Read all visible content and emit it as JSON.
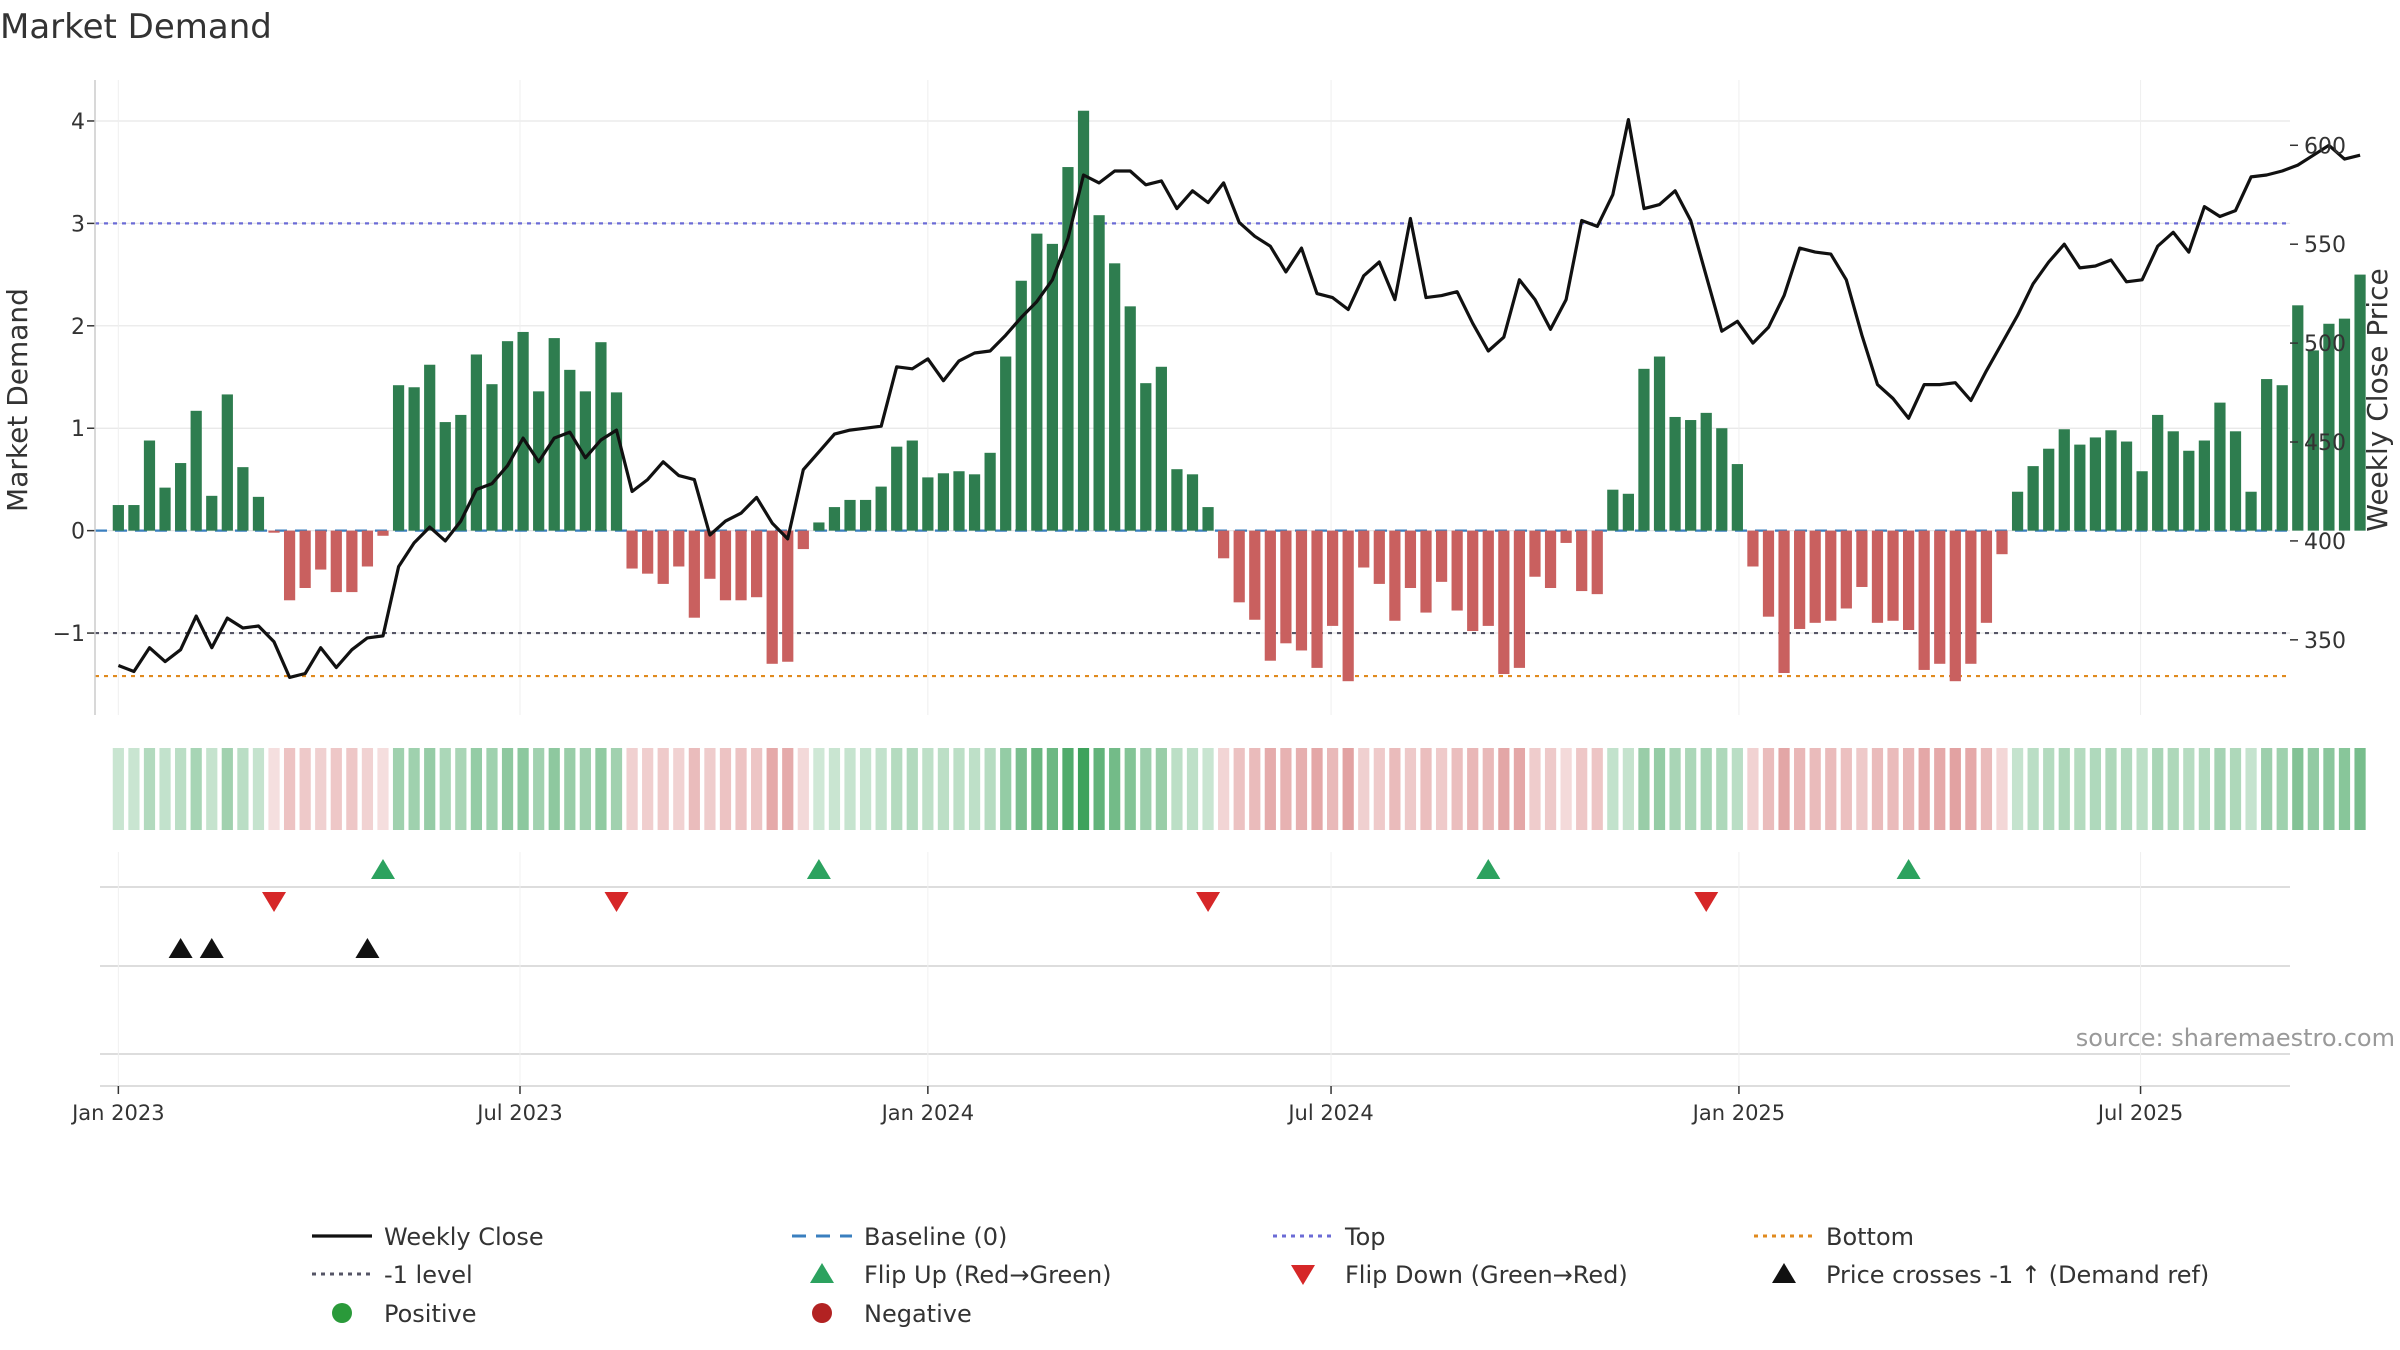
{
  "colors": {
    "positive_bar": "#2e7d4f",
    "negative_bar": "#c9605f",
    "price_line": "#111111",
    "baseline": "#3a7fbf",
    "top": "#6b6bd6",
    "bottom": "#e08a1e",
    "minus1": "#555566",
    "flip_up": "#2ca25f",
    "flip_down": "#d62728",
    "cross": "#111111",
    "positive_dot": "#2a9a3a",
    "negative_dot": "#b22222",
    "grid": "#e6e6e6"
  },
  "chart_data": {
    "type": "bar+line",
    "title": "Market Demand",
    "ylabel": "Market Demand",
    "y2label": "Weekly Close Price",
    "ylim": [
      -1.8,
      4.4
    ],
    "y2lim": [
      312,
      633
    ],
    "yticks": [
      -1,
      0,
      1,
      2,
      3,
      4
    ],
    "ytick_labels": [
      "−1",
      "0",
      "1",
      "2",
      "3",
      "4"
    ],
    "y2ticks": [
      350,
      400,
      450,
      500,
      550,
      600
    ],
    "y2tick_labels": [
      "350",
      "400",
      "450",
      "500",
      "550",
      "600"
    ],
    "x_start": "2023-01-02",
    "x_axis_range_weeks": [
      -1.5,
      139.5
    ],
    "x_ticks": [
      {
        "label": "Jan 2023",
        "week": 0
      },
      {
        "label": "Jul 2023",
        "week": 25.8
      },
      {
        "label": "Jan 2024",
        "week": 52
      },
      {
        "label": "Jul 2024",
        "week": 77.9
      },
      {
        "label": "Jan 2025",
        "week": 104.1
      },
      {
        "label": "Jul 2025",
        "week": 129.9
      }
    ],
    "reference_lines": {
      "top": 3.0,
      "bottom": -1.42,
      "minus_one": -1.0,
      "baseline": 0
    },
    "demand": [
      0.25,
      0.25,
      0.88,
      0.42,
      0.66,
      1.17,
      0.34,
      1.33,
      0.62,
      0.33,
      -0.02,
      -0.68,
      -0.56,
      -0.38,
      -0.6,
      -0.6,
      -0.35,
      -0.05,
      1.42,
      1.4,
      1.62,
      1.06,
      1.13,
      1.72,
      1.43,
      1.85,
      1.94,
      1.36,
      1.88,
      1.57,
      1.36,
      1.84,
      1.35,
      -0.37,
      -0.42,
      -0.52,
      -0.35,
      -0.85,
      -0.47,
      -0.68,
      -0.68,
      -0.65,
      -1.3,
      -1.28,
      -0.18,
      0.08,
      0.23,
      0.3,
      0.3,
      0.43,
      0.82,
      0.88,
      0.52,
      0.56,
      0.58,
      0.55,
      0.76,
      1.7,
      2.44,
      2.9,
      2.8,
      3.55,
      4.1,
      3.08,
      2.61,
      2.19,
      1.44,
      1.6,
      0.6,
      0.55,
      0.23,
      -0.27,
      -0.7,
      -0.87,
      -1.27,
      -1.1,
      -1.17,
      -1.34,
      -0.93,
      -1.47,
      -0.36,
      -0.52,
      -0.88,
      -0.56,
      -0.8,
      -0.5,
      -0.78,
      -0.98,
      -0.93,
      -1.4,
      -1.34,
      -0.45,
      -0.56,
      -0.12,
      -0.59,
      -0.62,
      0.4,
      0.36,
      1.58,
      1.7,
      1.11,
      1.08,
      1.15,
      1.0,
      0.65,
      -0.35,
      -0.84,
      -1.39,
      -0.96,
      -0.9,
      -0.88,
      -0.76,
      -0.55,
      -0.9,
      -0.88,
      -0.97,
      -1.36,
      -1.3,
      -1.47,
      -1.3,
      -0.9,
      -0.23,
      0.38,
      0.63,
      0.8,
      0.99,
      0.84,
      0.91,
      0.98,
      0.87,
      0.58,
      1.13,
      0.97,
      0.78,
      0.88,
      1.25,
      0.97,
      0.38,
      1.48,
      1.42,
      2.2,
      1.76,
      2.02,
      2.07,
      2.5
    ],
    "price": [
      337,
      334,
      346,
      339,
      345,
      362,
      346,
      361,
      356,
      357,
      349,
      331,
      333,
      346,
      336,
      345,
      351,
      352,
      387,
      399,
      407,
      400,
      410,
      426,
      429,
      438,
      452,
      440,
      452,
      455,
      442,
      451,
      456,
      425,
      431,
      440,
      433,
      431,
      403,
      410,
      414,
      422,
      409,
      401,
      436,
      445,
      454,
      456,
      457,
      458,
      488,
      487,
      492,
      481,
      491,
      495,
      496,
      504,
      513,
      521,
      532,
      553,
      585,
      581,
      587,
      587,
      580,
      582,
      568,
      577,
      571,
      581,
      561,
      554,
      549,
      536,
      548,
      525,
      523,
      517,
      534,
      541,
      522,
      563,
      523,
      524,
      526,
      510,
      496,
      503,
      532,
      522,
      507,
      522,
      562,
      559,
      575,
      613,
      568,
      570,
      577,
      562,
      534,
      506,
      511,
      500,
      508,
      524,
      548,
      546,
      545,
      532,
      504,
      479,
      472,
      462,
      479,
      479,
      480,
      471,
      486,
      500,
      514,
      530,
      541,
      550,
      538,
      539,
      542,
      531,
      532,
      549,
      556,
      546,
      569,
      564,
      567,
      584,
      585,
      587,
      590,
      595,
      600,
      593,
      595
    ],
    "band": {
      "levels_from_zero": "shade intensity by magnitude"
    },
    "flip_up_weeks": [
      17,
      45,
      88,
      115
    ],
    "flip_down_weeks": [
      10,
      32,
      70,
      102
    ],
    "price_cross_weeks": [
      4,
      6,
      16
    ],
    "source": "source: sharemaestro.com",
    "legend": [
      {
        "label": "Weekly Close",
        "symbol": "line",
        "color_key": "price_line"
      },
      {
        "label": "Baseline (0)",
        "symbol": "dash",
        "color_key": "baseline"
      },
      {
        "label": "Top",
        "symbol": "dot",
        "color_key": "top"
      },
      {
        "label": "Bottom",
        "symbol": "dot",
        "color_key": "bottom"
      },
      {
        "label": "-1 level",
        "symbol": "dot",
        "color_key": "minus1"
      },
      {
        "label": "Flip Up (Red→Green)",
        "symbol": "tri-up",
        "color_key": "flip_up"
      },
      {
        "label": "Flip Down (Green→Red)",
        "symbol": "tri-down",
        "color_key": "flip_down"
      },
      {
        "label": "Price crosses -1 ↑ (Demand ref)",
        "symbol": "tri-up",
        "color_key": "cross"
      },
      {
        "label": "Positive",
        "symbol": "circle",
        "color_key": "positive_dot"
      },
      {
        "label": "Negative",
        "symbol": "circle",
        "color_key": "negative_dot"
      }
    ]
  }
}
